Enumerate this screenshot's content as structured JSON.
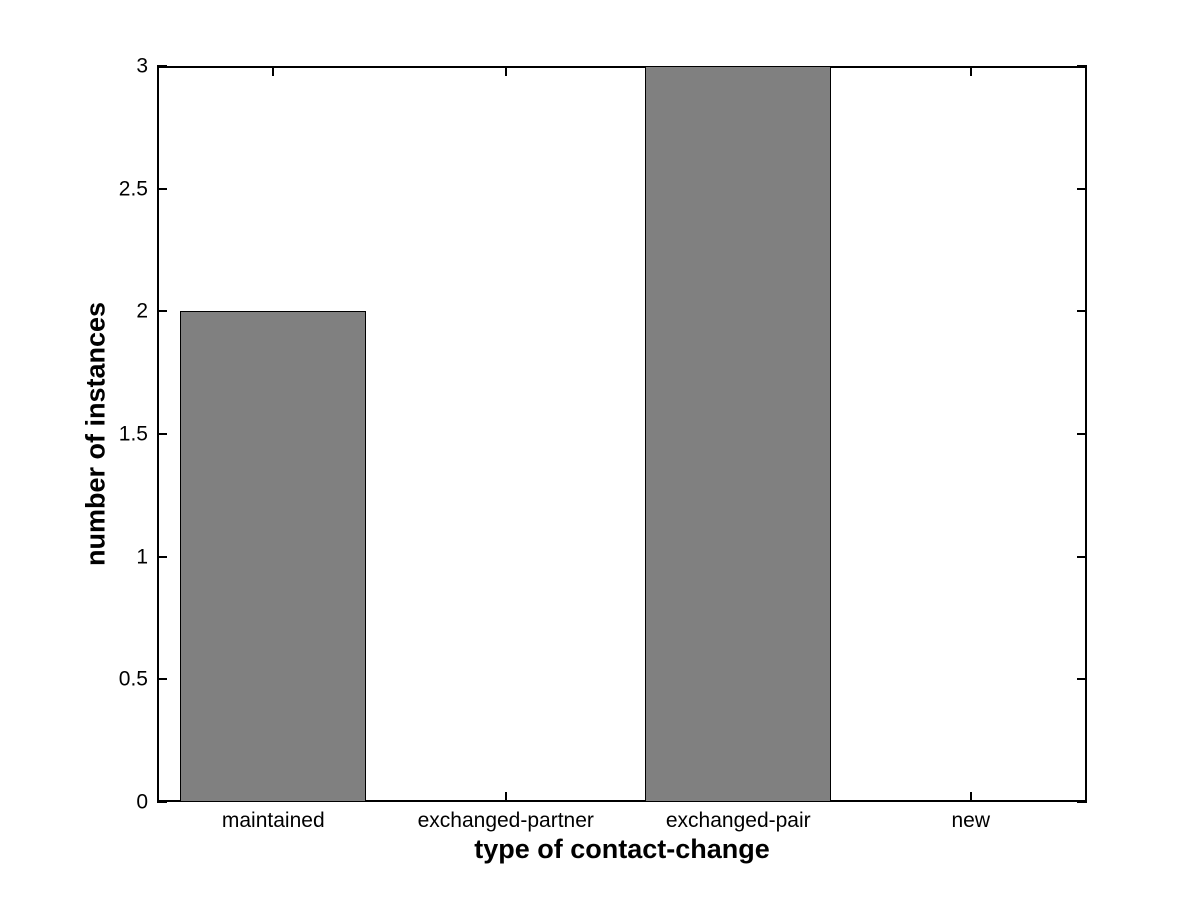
{
  "figure": {
    "background": "#ffffff"
  },
  "chart_data": {
    "type": "bar",
    "title": "",
    "categories": [
      "maintained",
      "exchanged-partner",
      "exchanged-pair",
      "new"
    ],
    "values": [
      2,
      0,
      3,
      0
    ],
    "xlabel": "type of contact-change",
    "ylabel": "number of instances",
    "ylim": [
      0,
      3
    ],
    "yticks": [
      0,
      0.5,
      1,
      1.5,
      2,
      2.5,
      3
    ],
    "ytick_labels": [
      "0",
      "0.5",
      "1",
      "1.5",
      "2",
      "2.5",
      "3"
    ],
    "bar_color": "#808080",
    "bar_edge_color": "#000000",
    "axis_color": "#000000",
    "bar_width_fraction": 0.8,
    "grid": false,
    "box": true,
    "tick_direction": "in"
  }
}
